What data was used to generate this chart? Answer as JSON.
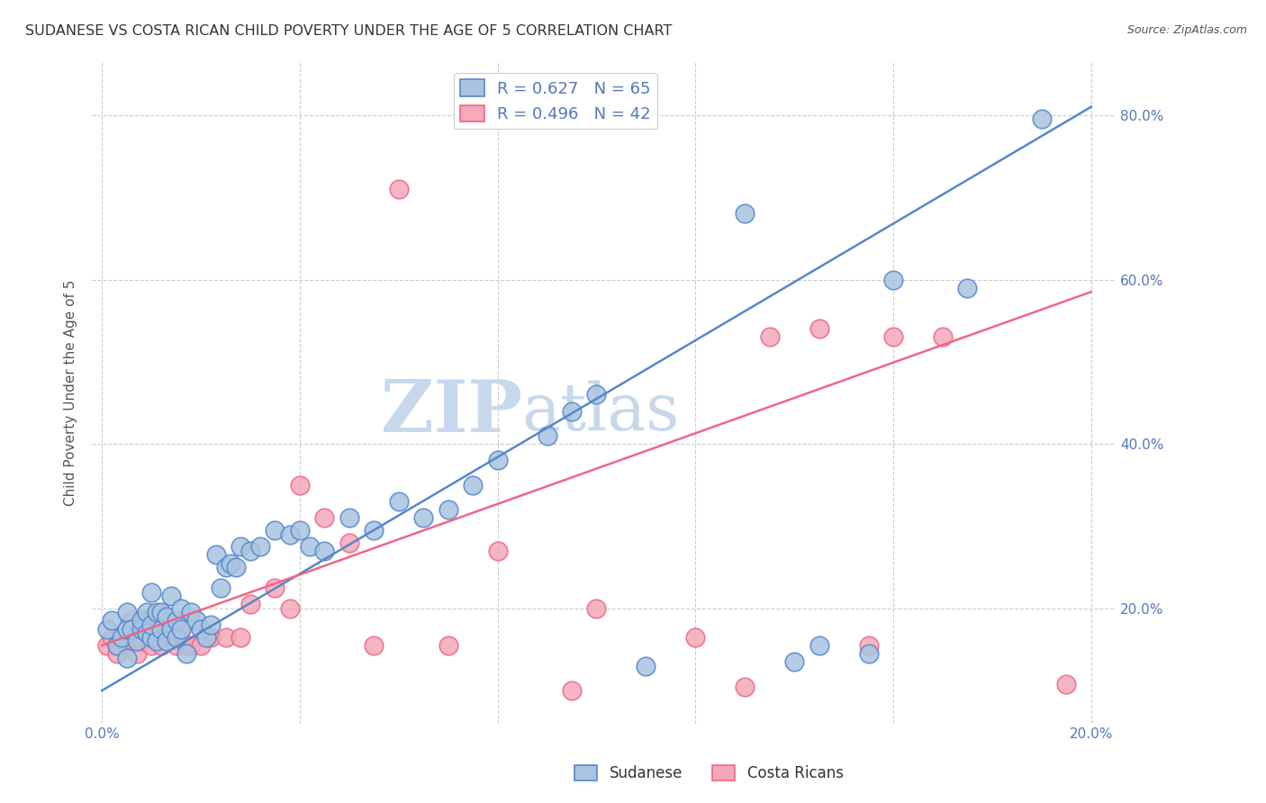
{
  "title": "SUDANESE VS COSTA RICAN CHILD POVERTY UNDER THE AGE OF 5 CORRELATION CHART",
  "source": "Source: ZipAtlas.com",
  "ylabel": "Child Poverty Under the Age of 5",
  "xlabel": "",
  "xlim": [
    -0.002,
    0.205
  ],
  "ylim": [
    0.06,
    0.865
  ],
  "x_ticks": [
    0.0,
    0.04,
    0.08,
    0.12,
    0.16,
    0.2
  ],
  "x_tick_labels": [
    "0.0%",
    "",
    "",
    "",
    "",
    "20.0%"
  ],
  "y_ticks": [
    0.2,
    0.4,
    0.6,
    0.8
  ],
  "y_tick_labels": [
    "20.0%",
    "40.0%",
    "60.0%",
    "80.0%"
  ],
  "blue_R": 0.627,
  "blue_N": 65,
  "pink_R": 0.496,
  "pink_N": 42,
  "blue_color": "#A8C4E0",
  "pink_color": "#F4A8B8",
  "blue_edge_color": "#5588CC",
  "pink_edge_color": "#EE6688",
  "blue_line_color": "#5588CC",
  "pink_line_color": "#EE6688",
  "axis_color": "#5577BB",
  "grid_color": "#CCCCCC",
  "watermark_zip_color": "#C8D8EC",
  "watermark_atlas_color": "#C8D8EC",
  "blue_line_x0": 0.0,
  "blue_line_y0": 0.1,
  "blue_line_x1": 0.2,
  "blue_line_y1": 0.81,
  "pink_line_x0": 0.0,
  "pink_line_y0": 0.155,
  "pink_line_x1": 0.2,
  "pink_line_y1": 0.585,
  "blue_scatter_x": [
    0.001,
    0.002,
    0.003,
    0.004,
    0.005,
    0.005,
    0.005,
    0.006,
    0.007,
    0.008,
    0.008,
    0.009,
    0.009,
    0.01,
    0.01,
    0.01,
    0.011,
    0.011,
    0.012,
    0.012,
    0.013,
    0.013,
    0.014,
    0.014,
    0.015,
    0.015,
    0.016,
    0.016,
    0.017,
    0.018,
    0.019,
    0.02,
    0.021,
    0.022,
    0.023,
    0.024,
    0.025,
    0.026,
    0.027,
    0.028,
    0.03,
    0.032,
    0.035,
    0.038,
    0.04,
    0.042,
    0.045,
    0.05,
    0.055,
    0.06,
    0.065,
    0.07,
    0.075,
    0.08,
    0.09,
    0.095,
    0.1,
    0.11,
    0.13,
    0.14,
    0.145,
    0.155,
    0.16,
    0.175,
    0.19
  ],
  "blue_scatter_y": [
    0.175,
    0.185,
    0.155,
    0.165,
    0.14,
    0.175,
    0.195,
    0.175,
    0.16,
    0.175,
    0.185,
    0.17,
    0.195,
    0.165,
    0.18,
    0.22,
    0.16,
    0.195,
    0.175,
    0.195,
    0.16,
    0.19,
    0.175,
    0.215,
    0.165,
    0.185,
    0.175,
    0.2,
    0.145,
    0.195,
    0.185,
    0.175,
    0.165,
    0.18,
    0.265,
    0.225,
    0.25,
    0.255,
    0.25,
    0.275,
    0.27,
    0.275,
    0.295,
    0.29,
    0.295,
    0.275,
    0.27,
    0.31,
    0.295,
    0.33,
    0.31,
    0.32,
    0.35,
    0.38,
    0.41,
    0.44,
    0.46,
    0.13,
    0.68,
    0.135,
    0.155,
    0.145,
    0.6,
    0.59,
    0.795
  ],
  "pink_scatter_x": [
    0.001,
    0.002,
    0.003,
    0.004,
    0.005,
    0.006,
    0.007,
    0.008,
    0.009,
    0.01,
    0.011,
    0.012,
    0.013,
    0.014,
    0.015,
    0.016,
    0.017,
    0.018,
    0.02,
    0.022,
    0.025,
    0.028,
    0.03,
    0.035,
    0.038,
    0.04,
    0.045,
    0.05,
    0.055,
    0.06,
    0.07,
    0.08,
    0.095,
    0.1,
    0.12,
    0.13,
    0.135,
    0.145,
    0.155,
    0.16,
    0.17,
    0.195
  ],
  "pink_scatter_y": [
    0.155,
    0.165,
    0.145,
    0.16,
    0.155,
    0.185,
    0.145,
    0.16,
    0.185,
    0.155,
    0.165,
    0.155,
    0.175,
    0.165,
    0.155,
    0.175,
    0.155,
    0.155,
    0.155,
    0.165,
    0.165,
    0.165,
    0.205,
    0.225,
    0.2,
    0.35,
    0.31,
    0.28,
    0.155,
    0.71,
    0.155,
    0.27,
    0.1,
    0.2,
    0.165,
    0.105,
    0.53,
    0.54,
    0.155,
    0.53,
    0.53,
    0.108
  ]
}
